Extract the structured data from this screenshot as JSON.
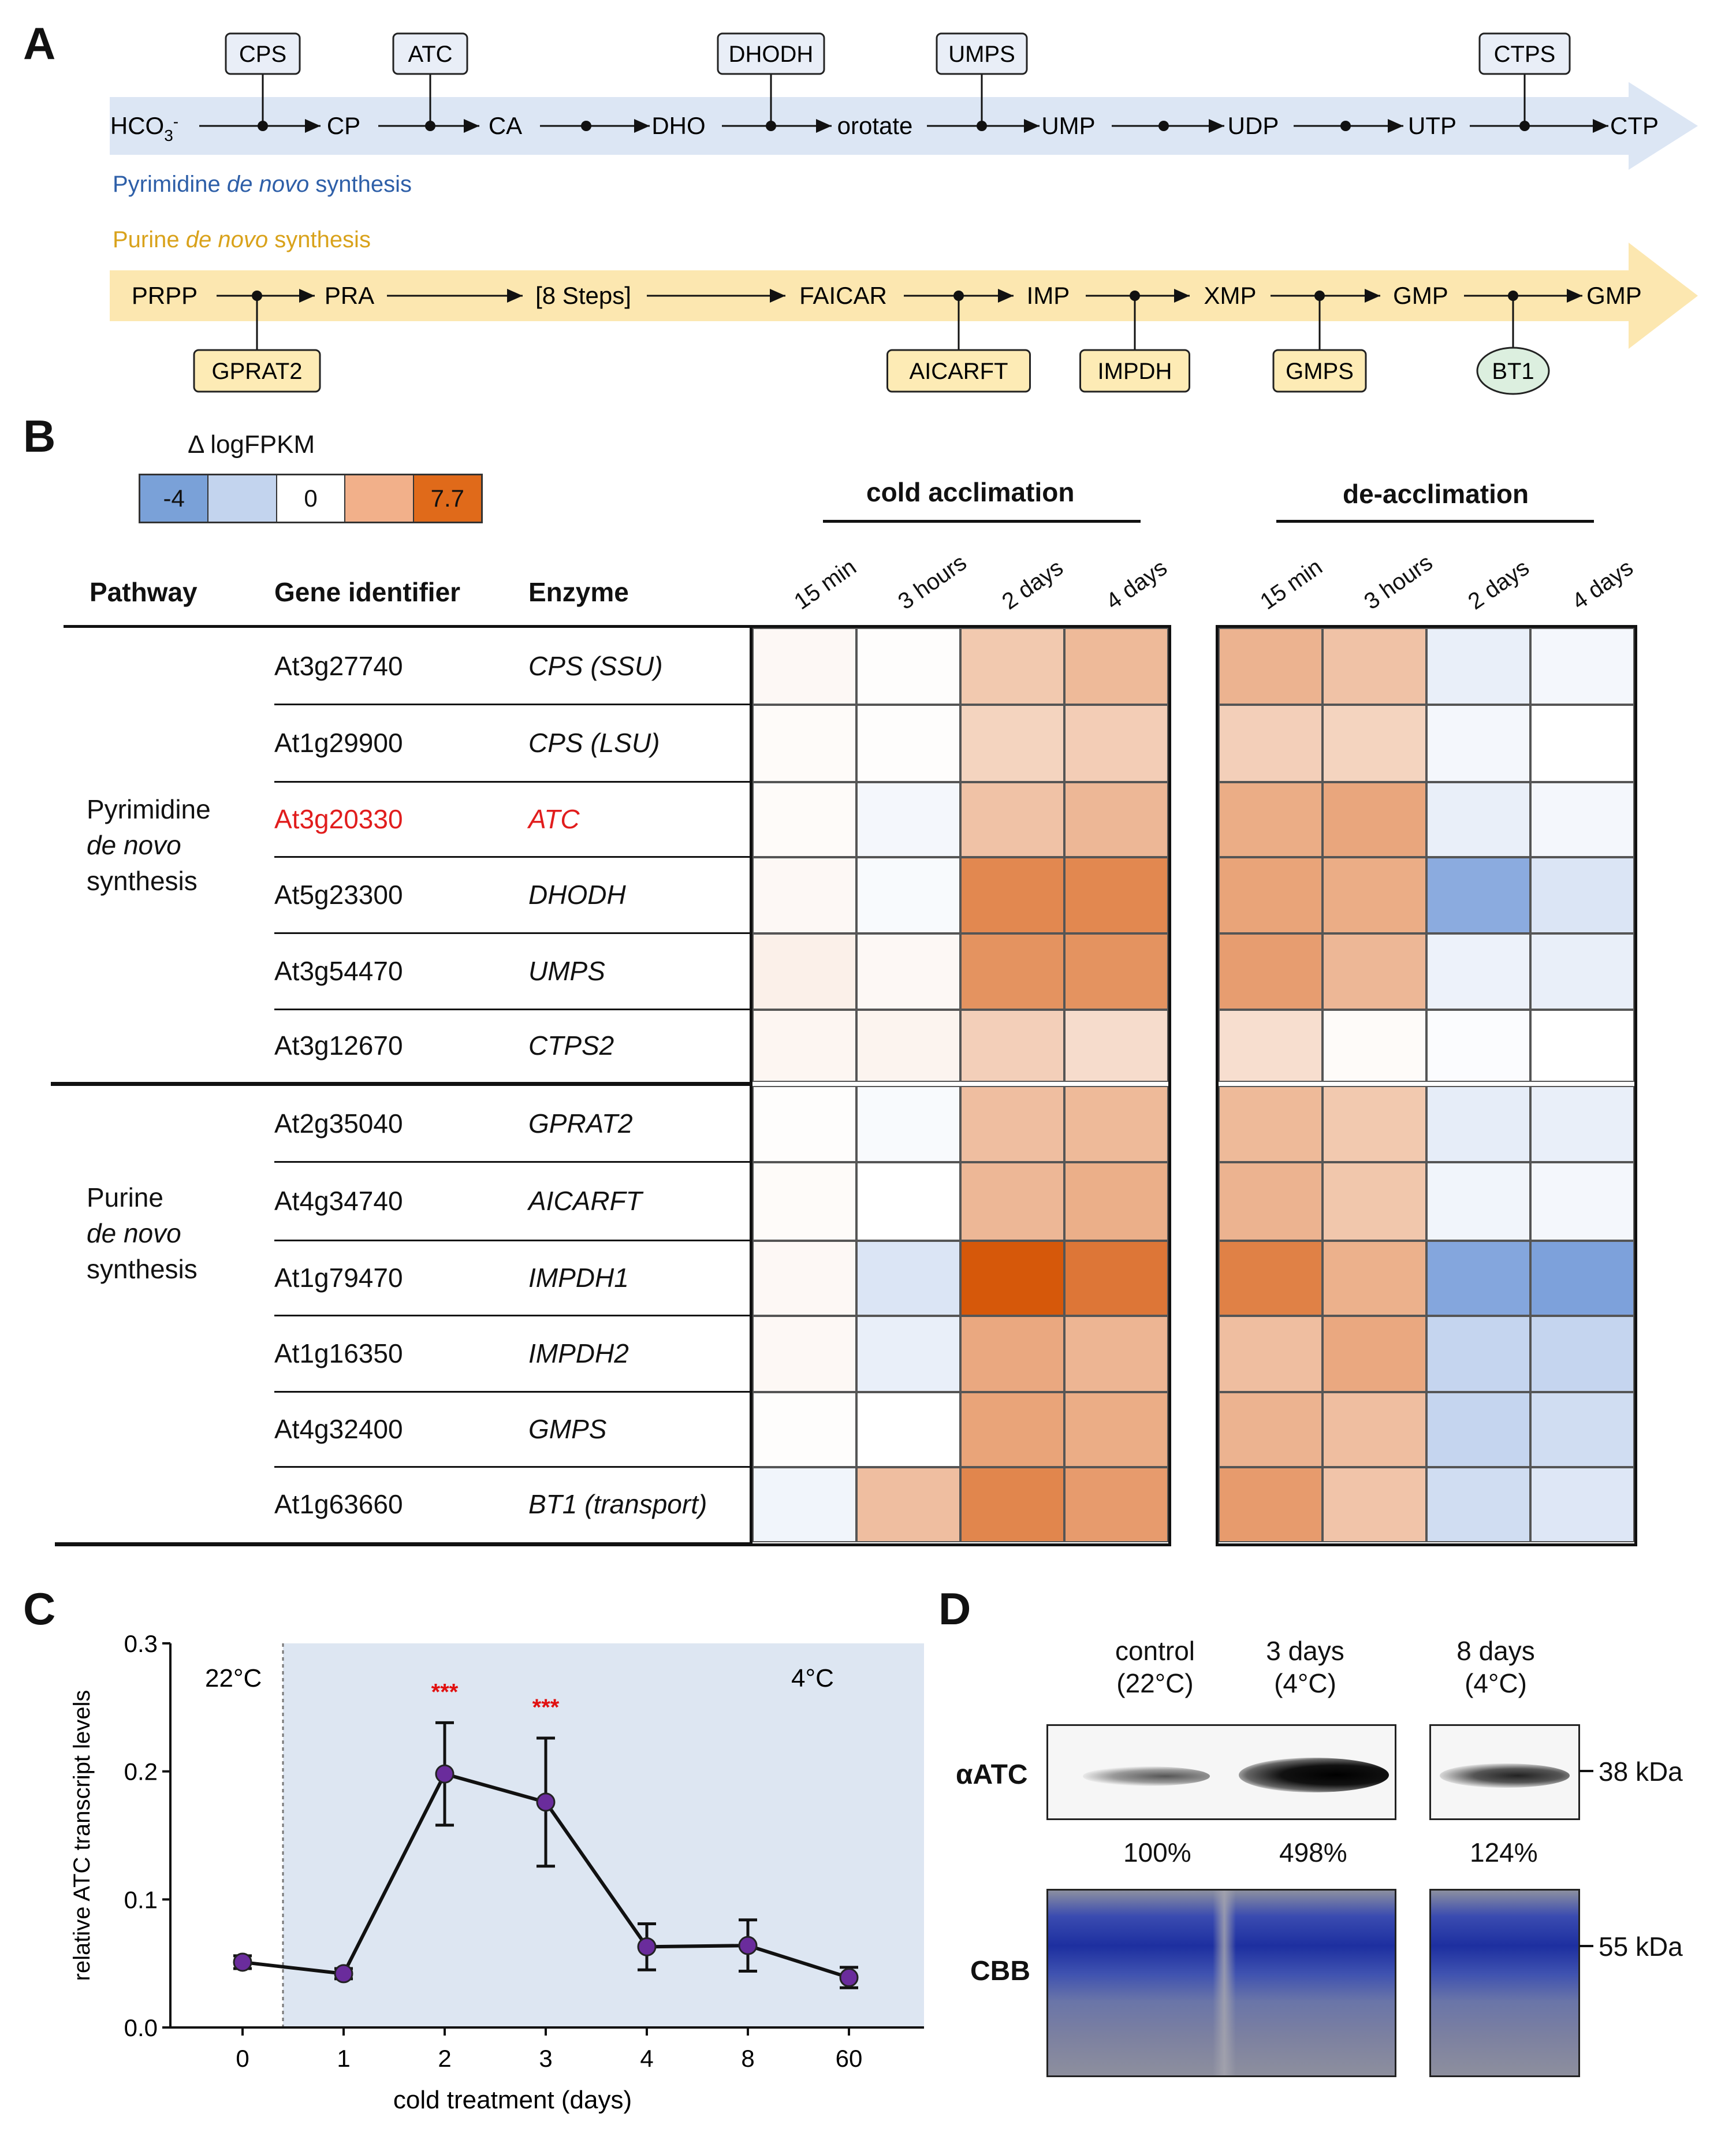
{
  "panels": {
    "a": "A",
    "b": "B",
    "c": "C",
    "d": "D"
  },
  "pathway": {
    "pyrimidine_label": {
      "pre": "Pyrimidine ",
      "it": "de novo",
      "post": " synthesis"
    },
    "purine_label": {
      "pre": "Purine ",
      "it": "de novo",
      "post": " synthesis"
    },
    "pyr_metabolites": [
      "HCO3-",
      "CP",
      "CA",
      "DHO",
      "orotate",
      "UMP",
      "UDP",
      "UTP",
      "CTP"
    ],
    "pyr_enzymes": [
      "CPS",
      "ATC",
      "DHODH",
      "UMPS",
      "CTPS"
    ],
    "pur_metabolites": [
      "PRPP",
      "PRA",
      "[8 Steps]",
      "FAICAR",
      "IMP",
      "XMP",
      "GMP",
      "GMP"
    ],
    "pur_enzymes": [
      "GPRAT2",
      "AICARFT",
      "IMPDH",
      "GMPS",
      "BT1"
    ],
    "colors": {
      "pyr_band": "#dce6f4",
      "pur_band": "#fce7b0",
      "pyr_text": "#2e5fa8",
      "pur_text": "#d9a21b",
      "enz_box": "#e9eef7",
      "pur_box": "#fdebb5",
      "bt1": "#dcefdf"
    }
  },
  "legend": {
    "title": "Δ logFPKM",
    "values": [
      "-4",
      "",
      "0",
      "",
      "7.7"
    ],
    "colors": [
      "#7aa1d8",
      "#c3d4ee",
      "#ffffff",
      "#f2b08a",
      "#e06a1a"
    ]
  },
  "heatmap": {
    "group_cold": "cold acclimation",
    "group_deacc": "de-acclimation",
    "col_headers": [
      "Pathway",
      "Gene identifier",
      "Enzyme"
    ],
    "time_points": [
      "15 min",
      "3 hours",
      "2 days",
      "4 days"
    ],
    "pathways": [
      {
        "lines": [
          "Pyrimidine",
          "de novo",
          "synthesis"
        ]
      },
      {
        "lines": [
          "Purine",
          "de novo",
          "synthesis"
        ]
      }
    ],
    "rows": [
      {
        "gene": "At3g27740",
        "enzyme": "CPS (SSU)",
        "cold": [
          0.3,
          0.1,
          2.5,
          3.2
        ],
        "deacc": [
          3.5,
          2.8,
          -0.6,
          -0.3
        ]
      },
      {
        "gene": "At1g29900",
        "enzyme": "CPS (LSU)",
        "cold": [
          0.2,
          0.1,
          2.0,
          2.3
        ],
        "deacc": [
          2.2,
          2.0,
          -0.3,
          0.0
        ]
      },
      {
        "gene": "At3g20330",
        "enzyme": "ATC",
        "cold": [
          0.2,
          -0.3,
          2.8,
          3.3
        ],
        "deacc": [
          3.8,
          4.1,
          -0.6,
          -0.3
        ],
        "highlight": true
      },
      {
        "gene": "At5g23300",
        "enzyme": "DHODH",
        "cold": [
          0.3,
          -0.2,
          5.5,
          5.5
        ],
        "deacc": [
          4.2,
          3.8,
          -3.2,
          -1.0
        ]
      },
      {
        "gene": "At3g54470",
        "enzyme": "UMPS",
        "cold": [
          0.7,
          0.3,
          5.0,
          5.0
        ],
        "deacc": [
          4.5,
          3.3,
          -0.5,
          -0.6
        ]
      },
      {
        "gene": "At3g12670",
        "enzyme": "CTPS2",
        "cold": [
          0.4,
          0.5,
          2.2,
          1.6
        ],
        "deacc": [
          1.5,
          0.2,
          -0.1,
          0.0
        ]
      },
      {
        "gene": "At2g35040",
        "enzyme": "GPRAT2",
        "cold": [
          0.1,
          -0.2,
          3.0,
          3.2
        ],
        "deacc": [
          3.2,
          2.5,
          -0.7,
          -0.6
        ]
      },
      {
        "gene": "At4g34740",
        "enzyme": "AICARFT",
        "cold": [
          0.2,
          0.0,
          3.3,
          3.7
        ],
        "deacc": [
          3.5,
          2.6,
          -0.4,
          -0.3
        ]
      },
      {
        "gene": "At1g79470",
        "enzyme": "IMPDH1",
        "cold": [
          0.3,
          -1.0,
          7.7,
          6.3
        ],
        "deacc": [
          5.8,
          3.6,
          -3.4,
          -3.6
        ]
      },
      {
        "gene": "At1g16350",
        "enzyme": "IMPDH2",
        "cold": [
          0.3,
          -0.6,
          4.0,
          3.4
        ],
        "deacc": [
          3.0,
          4.0,
          -1.6,
          -1.6
        ]
      },
      {
        "gene": "At4g32400",
        "enzyme": "GMPS",
        "cold": [
          0.1,
          0.0,
          4.2,
          3.8
        ],
        "deacc": [
          3.5,
          3.0,
          -1.6,
          -1.3
        ]
      },
      {
        "gene": "At1g63660",
        "enzyme": "BT1 (transport)",
        "cold": [
          -0.4,
          3.0,
          5.6,
          4.6
        ],
        "deacc": [
          4.6,
          2.7,
          -1.3,
          -0.9
        ]
      }
    ]
  },
  "chart_data": {
    "type": "line",
    "title": "",
    "xlabel": "cold treatment (days)",
    "ylabel": "relative ATC transcript levels",
    "categories": [
      "0",
      "1",
      "2",
      "3",
      "4",
      "8",
      "60"
    ],
    "values": [
      0.051,
      0.042,
      0.198,
      0.176,
      0.063,
      0.064,
      0.039
    ],
    "errors": [
      0.005,
      0.004,
      0.04,
      0.05,
      0.018,
      0.02,
      0.008
    ],
    "significance": [
      "",
      "",
      "***",
      "***",
      "",
      "",
      ""
    ],
    "ylim": [
      0.0,
      0.3
    ],
    "yticks": [
      "0.0",
      "0.1",
      "0.2",
      "0.3"
    ],
    "region_labels": [
      "22°C",
      "4°C"
    ],
    "colors": {
      "marker": "#6a2c9c",
      "shade": "#dde6f2",
      "sig": "#e11111"
    }
  },
  "blot": {
    "columns": [
      {
        "line1": "control",
        "line2": "(22°C)",
        "pct": "100%"
      },
      {
        "line1": "3 days",
        "line2": "(4°C)",
        "pct": "498%"
      },
      {
        "line1": "8 days",
        "line2": "(4°C)",
        "pct": "124%"
      }
    ],
    "row_labels": [
      "αATC",
      "CBB"
    ],
    "markers": [
      "38 kDa",
      "55 kDa"
    ]
  }
}
